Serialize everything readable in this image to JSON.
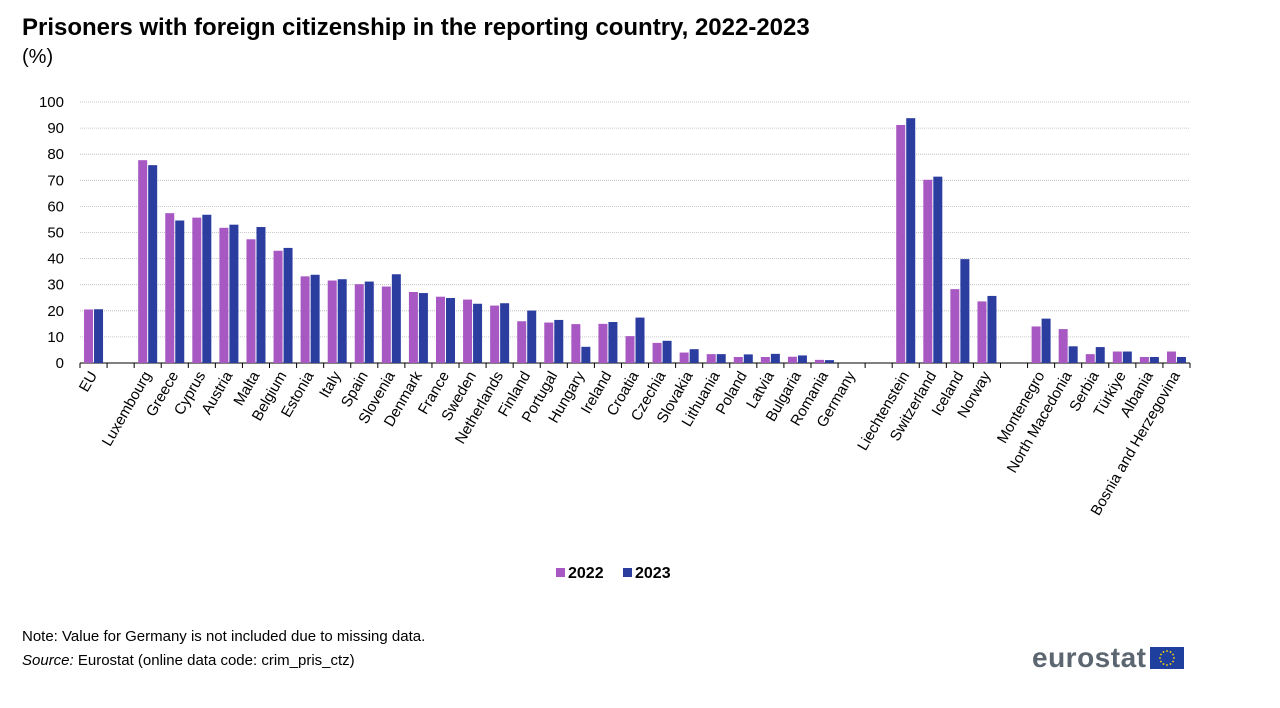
{
  "title": "Prisoners with foreign citizenship in the reporting country, 2022-2023",
  "unit": "(%)",
  "note": "Note: Value for Germany is not included due to missing data.",
  "source_label": "Source:",
  "source_text": " Eurostat (online data code: crim_pris_ctz)",
  "logo_text": "eurostat",
  "colors": {
    "s2022": "#a758c2",
    "s2023": "#2b3ea0",
    "grid": "#b8b8b8",
    "flag": "#1f3f9f",
    "star": "#ffd700"
  },
  "chart_data": {
    "type": "bar",
    "title": "Prisoners with foreign citizenship in the reporting country, 2022-2023",
    "ylabel": "(%)",
    "xlabel": "",
    "ylim": [
      0,
      100
    ],
    "yticks": [
      0,
      10,
      20,
      30,
      40,
      50,
      60,
      70,
      80,
      90,
      100
    ],
    "grid": true,
    "legend": "bottom-center",
    "groups": [
      [
        "EU"
      ],
      [
        "Luxembourg",
        "Greece",
        "Cyprus",
        "Austria",
        "Malta",
        "Belgium",
        "Estonia",
        "Italy",
        "Spain",
        "Slovenia",
        "Denmark",
        "France",
        "Sweden",
        "Netherlands",
        "Finland",
        "Portugal",
        "Hungary",
        "Ireland",
        "Croatia",
        "Czechia",
        "Slovakia",
        "Lithuania",
        "Poland",
        "Latvia",
        "Bulgaria",
        "Romania",
        "Germany"
      ],
      [
        "Liechtenstein",
        "Switzerland",
        "Iceland",
        "Norway"
      ],
      [
        "Montenegro",
        "North Macedonia",
        "Serbia",
        "Türkiye",
        "Albania",
        "Bosnia and Herzegovina"
      ]
    ],
    "categories": [
      "EU",
      "Luxembourg",
      "Greece",
      "Cyprus",
      "Austria",
      "Malta",
      "Belgium",
      "Estonia",
      "Italy",
      "Spain",
      "Slovenia",
      "Denmark",
      "France",
      "Sweden",
      "Netherlands",
      "Finland",
      "Portugal",
      "Hungary",
      "Ireland",
      "Croatia",
      "Czechia",
      "Slovakia",
      "Lithuania",
      "Poland",
      "Latvia",
      "Bulgaria",
      "Romania",
      "Germany",
      "Liechtenstein",
      "Switzerland",
      "Iceland",
      "Norway",
      "Montenegro",
      "North Macedonia",
      "Serbia",
      "Türkiye",
      "Albania",
      "Bosnia and Herzegovina"
    ],
    "series": [
      {
        "name": "2022",
        "values": [
          20.5,
          77.7,
          57.4,
          55.7,
          51.8,
          47.4,
          43.0,
          33.2,
          31.6,
          30.2,
          29.3,
          27.2,
          25.4,
          24.3,
          22.0,
          16.0,
          15.5,
          14.9,
          15.0,
          10.3,
          7.7,
          4.0,
          3.4,
          2.3,
          2.3,
          2.4,
          1.2,
          null,
          91.2,
          70.2,
          28.3,
          23.6,
          14.0,
          13.0,
          3.4,
          4.4,
          2.3,
          4.4
        ]
      },
      {
        "name": "2023",
        "values": [
          20.6,
          75.8,
          54.6,
          56.8,
          53.0,
          52.1,
          44.1,
          33.8,
          32.1,
          31.2,
          34.0,
          26.8,
          24.9,
          22.7,
          22.9,
          20.1,
          16.5,
          6.2,
          15.7,
          17.4,
          8.5,
          5.3,
          3.4,
          3.3,
          3.5,
          2.9,
          1.1,
          null,
          93.8,
          71.4,
          39.8,
          25.7,
          17.0,
          6.4,
          6.1,
          4.4,
          2.3,
          2.3
        ]
      }
    ]
  }
}
